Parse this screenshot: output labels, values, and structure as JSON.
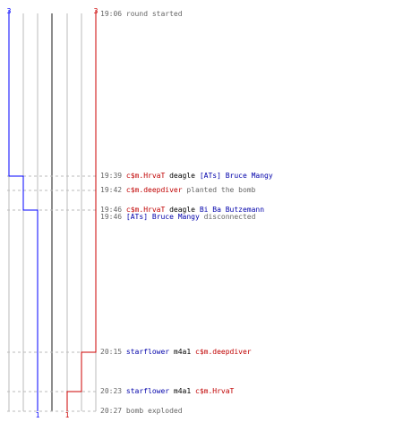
{
  "score": {
    "team_blue_start": "3",
    "team_red_start": "3",
    "team_blue_end": "1",
    "team_red_end": "1"
  },
  "colors": {
    "team_blue": "#0000ff",
    "team_red": "#cc0000",
    "grid": "#bbbbbb",
    "dashed": "#bbbbbb",
    "center_line": "#666666"
  },
  "events": [
    {
      "id": "e1",
      "time": "19:06",
      "parts": [
        {
          "t": "round started",
          "c": "plain"
        }
      ]
    },
    {
      "id": "e2",
      "time": "19:39",
      "parts": [
        {
          "t": "c$m.HrvaT",
          "c": "red"
        },
        {
          "t": " deagle ",
          "c": "black"
        },
        {
          "t": "[ATs] Bruce Mangy",
          "c": "blue"
        }
      ]
    },
    {
      "id": "e3",
      "time": "19:42",
      "parts": [
        {
          "t": "c$m.deepdiver",
          "c": "red"
        },
        {
          "t": " planted the bomb",
          "c": "plain"
        }
      ]
    },
    {
      "id": "e4",
      "time": "19:46",
      "parts": [
        {
          "t": "c$m.HrvaT",
          "c": "red"
        },
        {
          "t": " deagle ",
          "c": "black"
        },
        {
          "t": "Bi Ba Butzemann",
          "c": "blue"
        }
      ]
    },
    {
      "id": "e5",
      "time": "19:46",
      "parts": [
        {
          "t": "[ATs] Bruce Mangy",
          "c": "blue"
        },
        {
          "t": " disconnected",
          "c": "plain"
        }
      ]
    },
    {
      "id": "e6",
      "time": "20:15",
      "parts": [
        {
          "t": "starflower",
          "c": "blue"
        },
        {
          "t": " m4a1 ",
          "c": "black"
        },
        {
          "t": "c$m.deepdiver",
          "c": "red"
        }
      ]
    },
    {
      "id": "e7",
      "time": "20:23",
      "parts": [
        {
          "t": "starflower",
          "c": "blue"
        },
        {
          "t": " m4a1 ",
          "c": "black"
        },
        {
          "t": "c$m.HrvaT",
          "c": "red"
        }
      ]
    },
    {
      "id": "e8",
      "time": "20:27",
      "parts": [
        {
          "t": "bomb exploded",
          "c": "plain"
        }
      ]
    }
  ]
}
